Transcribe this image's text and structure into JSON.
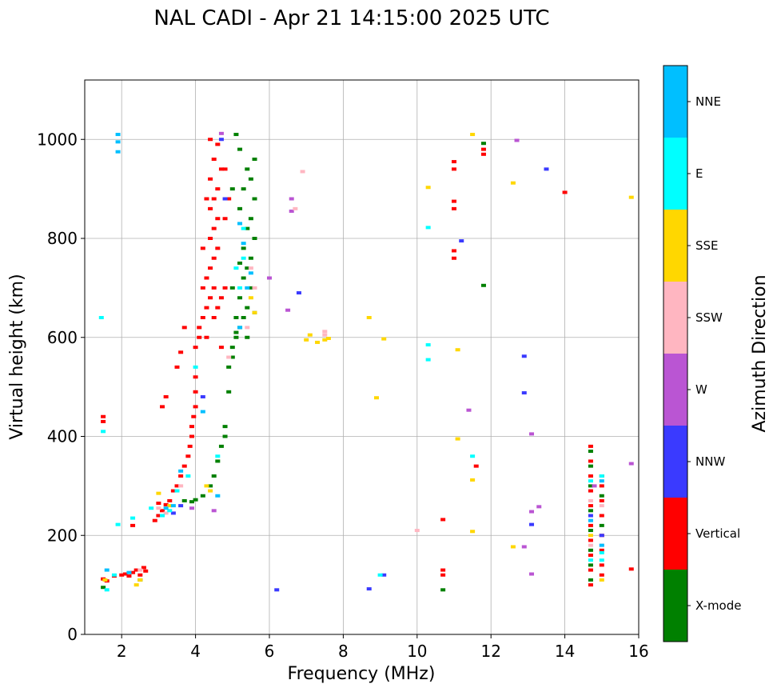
{
  "chart_data": {
    "type": "scatter",
    "title": "NAL CADI - Apr 21 14:15:00 2025 UTC",
    "xlabel": "Frequency (MHz)",
    "ylabel": "Virtual height (km)",
    "xlim": [
      1,
      16
    ],
    "ylim": [
      0,
      1120
    ],
    "xticks": [
      2,
      4,
      6,
      8,
      10,
      12,
      14,
      16
    ],
    "yticks": [
      0,
      200,
      400,
      600,
      800,
      1000
    ],
    "grid": true,
    "colorbar": {
      "label": "Azimuth Direction",
      "categories": [
        {
          "name": "X-mode",
          "color": "#008000"
        },
        {
          "name": "Vertical",
          "color": "#ff0000"
        },
        {
          "name": "NNW",
          "color": "#3a3aff"
        },
        {
          "name": "W",
          "color": "#ba55d3"
        },
        {
          "name": "SSW",
          "color": "#ffb6c1"
        },
        {
          "name": "SSE",
          "color": "#ffd700"
        },
        {
          "name": "E",
          "color": "#00ffff"
        },
        {
          "name": "NNE",
          "color": "#00bfff"
        }
      ]
    },
    "series": [
      {
        "name": "Vertical",
        "points": [
          [
            1.5,
            440
          ],
          [
            1.5,
            430
          ],
          [
            1.5,
            112
          ],
          [
            1.6,
            108
          ],
          [
            1.8,
            118
          ],
          [
            2.0,
            120
          ],
          [
            2.1,
            122
          ],
          [
            2.2,
            118
          ],
          [
            2.3,
            125
          ],
          [
            2.4,
            130
          ],
          [
            2.5,
            120
          ],
          [
            2.6,
            135
          ],
          [
            2.65,
            128
          ],
          [
            2.3,
            220
          ],
          [
            2.9,
            230
          ],
          [
            3.0,
            240
          ],
          [
            3.1,
            250
          ],
          [
            3.0,
            265
          ],
          [
            3.2,
            262
          ],
          [
            3.3,
            270
          ],
          [
            3.4,
            290
          ],
          [
            3.5,
            300
          ],
          [
            3.6,
            320
          ],
          [
            3.7,
            340
          ],
          [
            3.8,
            360
          ],
          [
            3.85,
            380
          ],
          [
            3.9,
            400
          ],
          [
            3.9,
            420
          ],
          [
            3.95,
            440
          ],
          [
            4.0,
            460
          ],
          [
            4.0,
            490
          ],
          [
            4.0,
            520
          ],
          [
            3.1,
            460
          ],
          [
            3.2,
            480
          ],
          [
            3.5,
            540
          ],
          [
            3.7,
            620
          ],
          [
            3.6,
            570
          ],
          [
            4.0,
            580
          ],
          [
            4.1,
            600
          ],
          [
            4.1,
            620
          ],
          [
            4.2,
            640
          ],
          [
            4.3,
            660
          ],
          [
            4.4,
            680
          ],
          [
            4.5,
            700
          ],
          [
            4.3,
            720
          ],
          [
            4.4,
            740
          ],
          [
            4.5,
            760
          ],
          [
            4.6,
            780
          ],
          [
            4.4,
            800
          ],
          [
            4.5,
            820
          ],
          [
            4.6,
            840
          ],
          [
            4.4,
            860
          ],
          [
            4.5,
            880
          ],
          [
            4.6,
            900
          ],
          [
            4.4,
            920
          ],
          [
            4.7,
            940
          ],
          [
            4.5,
            960
          ],
          [
            4.6,
            990
          ],
          [
            4.3,
            600
          ],
          [
            4.7,
            680
          ],
          [
            4.8,
            700
          ],
          [
            4.5,
            640
          ],
          [
            4.8,
            840
          ],
          [
            4.9,
            880
          ],
          [
            4.2,
            780
          ],
          [
            4.3,
            880
          ],
          [
            4.8,
            940
          ],
          [
            4.4,
            1000
          ],
          [
            4.6,
            660
          ],
          [
            4.2,
            700
          ],
          [
            4.7,
            580
          ],
          [
            10.7,
            130
          ],
          [
            10.7,
            120
          ],
          [
            10.7,
            232
          ],
          [
            11.0,
            760
          ],
          [
            11.0,
            775
          ],
          [
            11.0,
            860
          ],
          [
            11.0,
            875
          ],
          [
            11.0,
            940
          ],
          [
            11.0,
            955
          ],
          [
            11.6,
            340
          ],
          [
            11.8,
            980
          ],
          [
            11.8,
            970
          ],
          [
            14.0,
            893
          ],
          [
            15.8,
            132
          ],
          [
            14.7,
            380
          ],
          [
            14.7,
            350
          ],
          [
            14.7,
            320
          ],
          [
            14.7,
            290
          ],
          [
            14.7,
            260
          ],
          [
            14.7,
            220
          ],
          [
            14.7,
            190
          ],
          [
            14.7,
            160
          ],
          [
            14.7,
            130
          ],
          [
            14.7,
            100
          ],
          [
            15.0,
            300
          ],
          [
            15.0,
            270
          ],
          [
            15.0,
            240
          ],
          [
            15.0,
            200
          ],
          [
            15.0,
            170
          ],
          [
            15.0,
            140
          ],
          [
            15.0,
            120
          ]
        ]
      },
      {
        "name": "X-mode",
        "points": [
          [
            1.5,
            95
          ],
          [
            2.5,
            110
          ],
          [
            3.7,
            270
          ],
          [
            3.9,
            268
          ],
          [
            4.0,
            272
          ],
          [
            4.2,
            280
          ],
          [
            4.4,
            300
          ],
          [
            4.5,
            320
          ],
          [
            4.6,
            350
          ],
          [
            4.7,
            380
          ],
          [
            4.8,
            400
          ],
          [
            4.8,
            420
          ],
          [
            4.9,
            490
          ],
          [
            4.9,
            540
          ],
          [
            5.0,
            560
          ],
          [
            5.0,
            580
          ],
          [
            5.1,
            600
          ],
          [
            5.2,
            620
          ],
          [
            5.3,
            640
          ],
          [
            5.1,
            610
          ],
          [
            5.4,
            660
          ],
          [
            5.2,
            680
          ],
          [
            5.5,
            700
          ],
          [
            5.3,
            720
          ],
          [
            5.4,
            740
          ],
          [
            5.5,
            760
          ],
          [
            5.3,
            780
          ],
          [
            5.6,
            800
          ],
          [
            5.4,
            820
          ],
          [
            5.5,
            840
          ],
          [
            5.2,
            860
          ],
          [
            5.6,
            880
          ],
          [
            5.3,
            900
          ],
          [
            5.5,
            920
          ],
          [
            5.4,
            940
          ],
          [
            5.6,
            960
          ],
          [
            5.2,
            980
          ],
          [
            5.1,
            1010
          ],
          [
            5.0,
            700
          ],
          [
            5.2,
            750
          ],
          [
            5.4,
            600
          ],
          [
            5.6,
            650
          ],
          [
            5.0,
            900
          ],
          [
            5.1,
            640
          ],
          [
            10.7,
            90
          ],
          [
            11.8,
            992
          ],
          [
            11.8,
            705
          ],
          [
            14.7,
            370
          ],
          [
            14.7,
            340
          ],
          [
            14.7,
            300
          ],
          [
            14.7,
            250
          ],
          [
            14.7,
            210
          ],
          [
            14.7,
            170
          ],
          [
            14.7,
            140
          ],
          [
            14.7,
            110
          ],
          [
            15.0,
            320
          ],
          [
            15.0,
            280
          ],
          [
            15.0,
            220
          ]
        ]
      },
      {
        "name": "NNW",
        "points": [
          [
            3.4,
            245
          ],
          [
            3.6,
            260
          ],
          [
            4.2,
            480
          ],
          [
            4.7,
            1000
          ],
          [
            4.8,
            880
          ],
          [
            6.2,
            90
          ],
          [
            6.8,
            690
          ],
          [
            8.7,
            92
          ],
          [
            9.1,
            120
          ],
          [
            11.2,
            795
          ],
          [
            12.9,
            562
          ],
          [
            12.9,
            488
          ],
          [
            13.1,
            222
          ],
          [
            13.5,
            940
          ],
          [
            14.7,
            240
          ],
          [
            15.0,
            200
          ]
        ]
      },
      {
        "name": "W",
        "points": [
          [
            3.9,
            255
          ],
          [
            4.7,
            1012
          ],
          [
            4.5,
            250
          ],
          [
            6.0,
            720
          ],
          [
            6.5,
            655
          ],
          [
            6.6,
            880
          ],
          [
            6.6,
            855
          ],
          [
            11.4,
            453
          ],
          [
            12.7,
            998
          ],
          [
            13.1,
            405
          ],
          [
            13.1,
            248
          ],
          [
            13.3,
            258
          ],
          [
            12.9,
            177
          ],
          [
            13.1,
            122
          ],
          [
            14.8,
            300
          ],
          [
            15.8,
            345
          ]
        ]
      },
      {
        "name": "SSW",
        "points": [
          [
            2.5,
            130
          ],
          [
            3.0,
            255
          ],
          [
            3.2,
            245
          ],
          [
            3.6,
            300
          ],
          [
            4.9,
            560
          ],
          [
            5.4,
            620
          ],
          [
            5.6,
            700
          ],
          [
            5.5,
            740
          ],
          [
            6.7,
            860
          ],
          [
            6.9,
            935
          ],
          [
            7.5,
            605
          ],
          [
            7.5,
            612
          ],
          [
            10.0,
            210
          ],
          [
            14.7,
            270
          ],
          [
            14.7,
            180
          ],
          [
            15.0,
            260
          ],
          [
            15.0,
            180
          ]
        ]
      },
      {
        "name": "SSE",
        "points": [
          [
            1.55,
            110
          ],
          [
            2.4,
            100
          ],
          [
            2.5,
            110
          ],
          [
            3.0,
            285
          ],
          [
            3.3,
            260
          ],
          [
            4.3,
            300
          ],
          [
            4.4,
            290
          ],
          [
            5.6,
            650
          ],
          [
            5.5,
            680
          ],
          [
            7.0,
            595
          ],
          [
            7.1,
            605
          ],
          [
            7.3,
            590
          ],
          [
            7.5,
            595
          ],
          [
            7.6,
            598
          ],
          [
            8.7,
            640
          ],
          [
            8.9,
            478
          ],
          [
            9.1,
            597
          ],
          [
            10.3,
            903
          ],
          [
            11.1,
            575
          ],
          [
            11.1,
            395
          ],
          [
            11.5,
            1010
          ],
          [
            11.5,
            208
          ],
          [
            11.5,
            312
          ],
          [
            12.6,
            177
          ],
          [
            12.6,
            912
          ],
          [
            15.8,
            883
          ],
          [
            15.0,
            110
          ],
          [
            14.7,
            200
          ]
        ]
      },
      {
        "name": "E",
        "points": [
          [
            1.45,
            640
          ],
          [
            1.5,
            410
          ],
          [
            1.6,
            90
          ],
          [
            1.8,
            120
          ],
          [
            1.9,
            222
          ],
          [
            2.3,
            235
          ],
          [
            2.8,
            255
          ],
          [
            3.1,
            240
          ],
          [
            3.3,
            250
          ],
          [
            3.5,
            290
          ],
          [
            3.8,
            320
          ],
          [
            4.0,
            540
          ],
          [
            4.6,
            360
          ],
          [
            5.2,
            700
          ],
          [
            5.3,
            760
          ],
          [
            5.3,
            820
          ],
          [
            5.1,
            740
          ],
          [
            9.0,
            120
          ],
          [
            10.3,
            822
          ],
          [
            10.3,
            585
          ],
          [
            10.3,
            555
          ],
          [
            11.5,
            360
          ],
          [
            14.7,
            310
          ],
          [
            15.0,
            320
          ],
          [
            15.0,
            150
          ],
          [
            15.0,
            165
          ],
          [
            14.7,
            150
          ]
        ]
      },
      {
        "name": "NNE",
        "points": [
          [
            1.9,
            1010
          ],
          [
            1.9,
            995
          ],
          [
            1.9,
            975
          ],
          [
            1.6,
            130
          ],
          [
            2.2,
            125
          ],
          [
            3.2,
            255
          ],
          [
            3.4,
            260
          ],
          [
            3.6,
            330
          ],
          [
            4.2,
            450
          ],
          [
            4.6,
            280
          ],
          [
            5.2,
            830
          ],
          [
            5.3,
            790
          ],
          [
            5.5,
            730
          ],
          [
            5.2,
            620
          ],
          [
            5.4,
            700
          ],
          [
            14.7,
            230
          ],
          [
            15.0,
            310
          ],
          [
            15.0,
            180
          ]
        ]
      }
    ]
  }
}
